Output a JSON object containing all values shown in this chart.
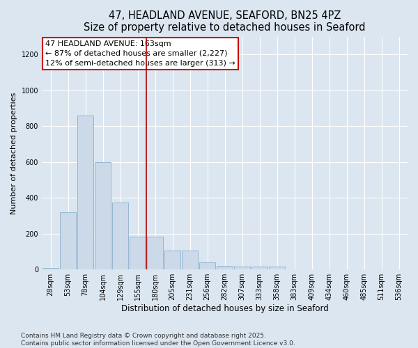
{
  "title": "47, HEADLAND AVENUE, SEAFORD, BN25 4PZ",
  "subtitle": "Size of property relative to detached houses in Seaford",
  "xlabel": "Distribution of detached houses by size in Seaford",
  "ylabel": "Number of detached properties",
  "categories": [
    "28sqm",
    "53sqm",
    "78sqm",
    "104sqm",
    "129sqm",
    "155sqm",
    "180sqm",
    "205sqm",
    "231sqm",
    "256sqm",
    "282sqm",
    "307sqm",
    "333sqm",
    "358sqm",
    "383sqm",
    "409sqm",
    "434sqm",
    "460sqm",
    "485sqm",
    "511sqm",
    "536sqm"
  ],
  "values": [
    10,
    320,
    860,
    600,
    375,
    185,
    185,
    105,
    105,
    40,
    20,
    15,
    15,
    15,
    0,
    0,
    0,
    0,
    0,
    0,
    0
  ],
  "bar_color": "#ccd9e8",
  "bar_edge_color": "#8ab0cc",
  "vline_x": 5.5,
  "vline_color": "#aa0000",
  "annotation_line1": "47 HEADLAND AVENUE: 163sqm",
  "annotation_line2": "← 87% of detached houses are smaller (2,227)",
  "annotation_line3": "12% of semi-detached houses are larger (313) →",
  "annotation_box_color": "#ffffff",
  "annotation_box_edge": "#cc0000",
  "ylim": [
    0,
    1300
  ],
  "yticks": [
    0,
    200,
    400,
    600,
    800,
    1000,
    1200
  ],
  "bg_color": "#dce6f0",
  "plot_bg_color": "#dce6f0",
  "footer_line1": "Contains HM Land Registry data © Crown copyright and database right 2025.",
  "footer_line2": "Contains public sector information licensed under the Open Government Licence v3.0.",
  "title_fontsize": 10.5,
  "xlabel_fontsize": 8.5,
  "ylabel_fontsize": 8,
  "tick_fontsize": 7,
  "annotation_fontsize": 8,
  "footer_fontsize": 6.5
}
